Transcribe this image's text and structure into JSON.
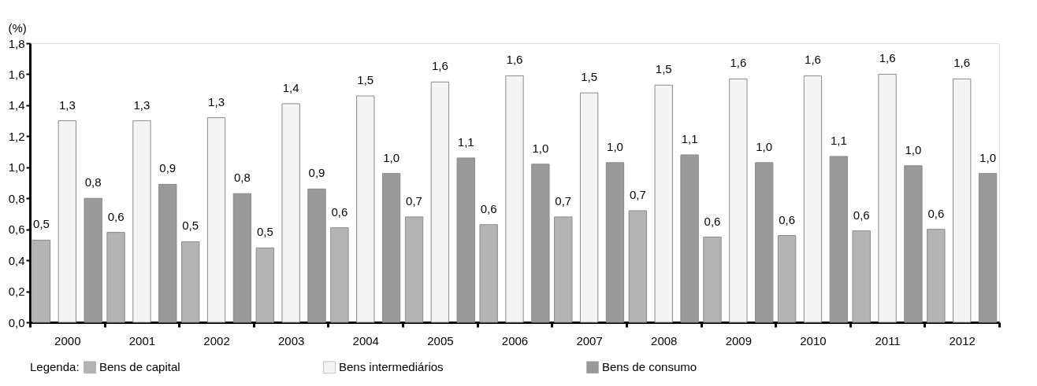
{
  "chart_data": {
    "type": "bar",
    "ylabel": "(%)",
    "legend_title": "Legenda:",
    "legend": "bottom",
    "grid": false,
    "categories": [
      "2000",
      "2001",
      "2002",
      "2003",
      "2004",
      "2005",
      "2006",
      "2007",
      "2008",
      "2009",
      "2010",
      "2011",
      "2012"
    ],
    "series": [
      {
        "name": "Bens de capital",
        "color": "#b4b4b4",
        "values": [
          0.53,
          0.58,
          0.52,
          0.48,
          0.61,
          0.68,
          0.63,
          0.68,
          0.72,
          0.55,
          0.56,
          0.59,
          0.6
        ],
        "value_labels": [
          "0,5",
          "0,6",
          "0,5",
          "0,5",
          "0,6",
          "0,7",
          "0,6",
          "0,7",
          "0,7",
          "0,6",
          "0,6",
          "0,6",
          "0,6"
        ]
      },
      {
        "name": "Bens intermediários",
        "color": "#f4f4f4",
        "values": [
          1.3,
          1.3,
          1.32,
          1.41,
          1.46,
          1.55,
          1.59,
          1.48,
          1.53,
          1.57,
          1.59,
          1.6,
          1.57
        ],
        "value_labels": [
          "1,3",
          "1,3",
          "1,3",
          "1,4",
          "1,5",
          "1,6",
          "1,6",
          "1,5",
          "1,5",
          "1,6",
          "1,6",
          "1,6",
          "1,6"
        ]
      },
      {
        "name": "Bens de consumo",
        "color": "#999999",
        "values": [
          0.8,
          0.89,
          0.83,
          0.86,
          0.96,
          1.06,
          1.02,
          1.03,
          1.08,
          1.03,
          1.07,
          1.01,
          0.96
        ],
        "value_labels": [
          "0,8",
          "0,9",
          "0,8",
          "0,9",
          "1,0",
          "1,1",
          "1,0",
          "1,0",
          "1,1",
          "1,0",
          "1,1",
          "1,0",
          "1,0"
        ]
      }
    ],
    "ylim": [
      0,
      1.8
    ],
    "yticks": [
      {
        "value": 0,
        "label": "0,0"
      },
      {
        "value": 0.2,
        "label": "0,2"
      },
      {
        "value": 0.4,
        "label": "0,4"
      },
      {
        "value": 0.6,
        "label": "0,6"
      },
      {
        "value": 0.8,
        "label": "0,8"
      },
      {
        "value": 1.0,
        "label": "1,0"
      },
      {
        "value": 1.2,
        "label": "1,2"
      },
      {
        "value": 1.4,
        "label": "1,4"
      },
      {
        "value": 1.6,
        "label": "1,6"
      },
      {
        "value": 1.8,
        "label": "1,8"
      }
    ]
  }
}
